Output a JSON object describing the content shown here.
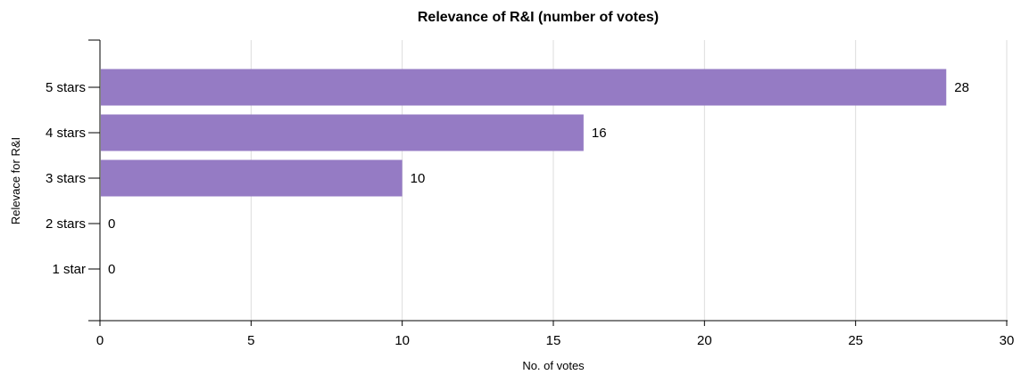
{
  "chart_data": {
    "type": "bar",
    "orientation": "horizontal",
    "title": "Relevance of R&I (number of votes)",
    "xlabel": "No. of votes",
    "ylabel": "Relevace for R&I",
    "categories": [
      "5 stars",
      "4 stars",
      "3 stars",
      "2 stars",
      "1 star"
    ],
    "values": [
      28,
      16,
      10,
      0,
      0
    ],
    "xlim": [
      0,
      30
    ],
    "xticks": [
      "0",
      "5",
      "10",
      "15",
      "20",
      "25",
      "30"
    ],
    "grid": true,
    "legend": "none",
    "colors": {
      "bar": "#957bc4",
      "grid": "#dddddd",
      "axis": "#000000"
    }
  }
}
